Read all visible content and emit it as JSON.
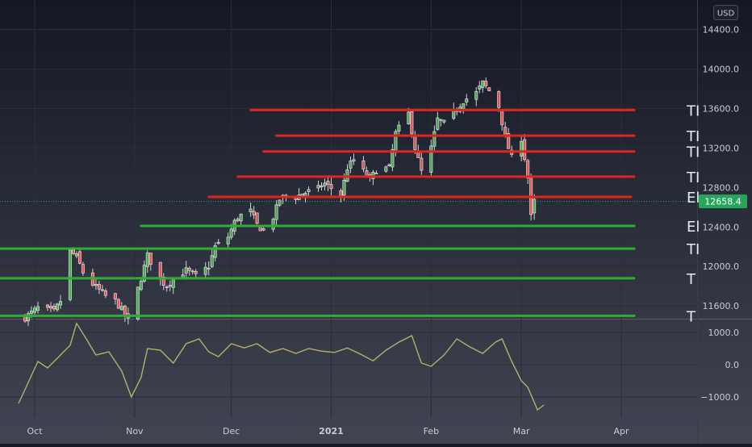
{
  "currency_label": "USD",
  "last_price_label": "12658.4",
  "chart_data": {
    "type": "candlestick",
    "instrument": "",
    "x_labels": [
      {
        "label": "Oct",
        "date": "2020-10-01",
        "bold": false
      },
      {
        "label": "Nov",
        "date": "2020-11-01",
        "bold": false
      },
      {
        "label": "Dec",
        "date": "2020-12-01",
        "bold": false
      },
      {
        "label": "2021",
        "date": "2021-01-01",
        "bold": true
      },
      {
        "label": "Feb",
        "date": "2021-02-01",
        "bold": false
      },
      {
        "label": "Mar",
        "date": "2021-03-01",
        "bold": false
      },
      {
        "label": "Apr",
        "date": "2021-04-01",
        "bold": false
      }
    ],
    "price_axis": {
      "ticks": [
        11600,
        12000,
        12400,
        12800,
        13200,
        13600,
        14000,
        14400
      ],
      "tick_labels": [
        "11600.0",
        "12000.0",
        "12400.0",
        "12800.0",
        "13200.0",
        "13600.0",
        "14000.0",
        "14400.0"
      ],
      "range": [
        11470,
        14700
      ]
    },
    "last_price": 12658.4,
    "colors": {
      "up": "#4caf50",
      "down": "#ef5350",
      "resistance": "#e0251e",
      "support": "#2fae34",
      "oscillator": "#b5b06a",
      "text": "#c9ccd6",
      "grid": "#2a2e39",
      "last_price_tag": "#26a65b"
    },
    "resistance_lines": [
      {
        "price": 13585,
        "start_date": "2020-12-07",
        "end_date": "2021-04-05",
        "label": "TI"
      },
      {
        "price": 13325,
        "start_date": "2020-12-15",
        "end_date": "2021-04-05",
        "label": "TI"
      },
      {
        "price": 13165,
        "start_date": "2020-12-11",
        "end_date": "2021-04-05",
        "label": "TI"
      },
      {
        "price": 12910,
        "start_date": "2020-12-03",
        "end_date": "2021-04-05",
        "label": "TI"
      },
      {
        "price": 12705,
        "start_date": "2020-11-24",
        "end_date": "2021-04-04",
        "label": "El"
      }
    ],
    "support_lines": [
      {
        "price": 12410,
        "start_date": "2020-11-03",
        "end_date": "2021-04-05",
        "label": "El"
      },
      {
        "price": 12180,
        "start_date": "2020-09-01",
        "end_date": "2021-04-05",
        "label": "TI"
      },
      {
        "price": 11880,
        "start_date": "2020-09-01",
        "end_date": "2021-04-05",
        "label": "T"
      },
      {
        "price": 11500,
        "start_date": "2020-09-01",
        "end_date": "2021-04-05",
        "label": "T"
      }
    ],
    "price_series": [
      {
        "date": "2020-09-28",
        "close": 11480
      },
      {
        "date": "2020-10-02",
        "close": 11580
      },
      {
        "date": "2020-10-07",
        "close": 11540
      },
      {
        "date": "2020-10-09",
        "close": 11650
      },
      {
        "date": "2020-10-12",
        "close": 12150
      },
      {
        "date": "2020-10-14",
        "close": 12100
      },
      {
        "date": "2020-10-16",
        "close": 11940
      },
      {
        "date": "2020-10-19",
        "close": 11820
      },
      {
        "date": "2020-10-21",
        "close": 11760
      },
      {
        "date": "2020-10-23",
        "close": 11700
      },
      {
        "date": "2020-10-26",
        "close": 11650
      },
      {
        "date": "2020-10-28",
        "close": 11560
      },
      {
        "date": "2020-10-30",
        "close": 11450
      },
      {
        "date": "2020-11-03",
        "close": 11880
      },
      {
        "date": "2020-11-05",
        "close": 12110
      },
      {
        "date": "2020-11-09",
        "close": 11860
      },
      {
        "date": "2020-11-11",
        "close": 11800
      },
      {
        "date": "2020-11-13",
        "close": 11880
      },
      {
        "date": "2020-11-17",
        "close": 11960
      },
      {
        "date": "2020-11-20",
        "close": 11900
      },
      {
        "date": "2020-11-24",
        "close": 12000
      },
      {
        "date": "2020-11-26",
        "close": 12200
      },
      {
        "date": "2020-11-30",
        "close": 12300
      },
      {
        "date": "2020-12-02",
        "close": 12450
      },
      {
        "date": "2020-12-04",
        "close": 12520
      },
      {
        "date": "2020-12-07",
        "close": 12560
      },
      {
        "date": "2020-12-09",
        "close": 12420
      },
      {
        "date": "2020-12-11",
        "close": 12360
      },
      {
        "date": "2020-12-14",
        "close": 12500
      },
      {
        "date": "2020-12-16",
        "close": 12680
      },
      {
        "date": "2020-12-18",
        "close": 12720
      },
      {
        "date": "2020-12-21",
        "close": 12700
      },
      {
        "date": "2020-12-23",
        "close": 12740
      },
      {
        "date": "2020-12-28",
        "close": 12790
      },
      {
        "date": "2020-12-30",
        "close": 12840
      },
      {
        "date": "2021-01-04",
        "close": 12720
      },
      {
        "date": "2021-01-06",
        "close": 13000
      },
      {
        "date": "2021-01-08",
        "close": 13080
      },
      {
        "date": "2021-01-11",
        "close": 12960
      },
      {
        "date": "2021-01-13",
        "close": 12880
      },
      {
        "date": "2021-01-15",
        "close": 12980
      },
      {
        "date": "2021-01-19",
        "close": 13000
      },
      {
        "date": "2021-01-21",
        "close": 13350
      },
      {
        "date": "2021-01-25",
        "close": 13550
      },
      {
        "date": "2021-01-27",
        "close": 13200
      },
      {
        "date": "2021-01-29",
        "close": 12960
      },
      {
        "date": "2021-02-01",
        "close": 13200
      },
      {
        "date": "2021-02-03",
        "close": 13490
      },
      {
        "date": "2021-02-05",
        "close": 13450
      },
      {
        "date": "2021-02-09",
        "close": 13600
      },
      {
        "date": "2021-02-11",
        "close": 13680
      },
      {
        "date": "2021-02-15",
        "close": 13760
      },
      {
        "date": "2021-02-17",
        "close": 13860
      },
      {
        "date": "2021-02-19",
        "close": 13780
      },
      {
        "date": "2021-02-22",
        "close": 13620
      },
      {
        "date": "2021-02-24",
        "close": 13300
      },
      {
        "date": "2021-02-26",
        "close": 13100
      },
      {
        "date": "2021-03-01",
        "close": 13300
      },
      {
        "date": "2021-03-03",
        "close": 12900
      },
      {
        "date": "2021-03-04",
        "close": 12500
      },
      {
        "date": "2021-03-05",
        "close": 12658
      }
    ],
    "oscillator": {
      "ticks": [
        1000,
        0,
        -1000
      ],
      "tick_labels": [
        "1000.0",
        "0.0",
        "−1000.0"
      ],
      "range": [
        -1650,
        1400
      ],
      "values": [
        {
          "date": "2020-09-26",
          "value": -1200
        },
        {
          "date": "2020-10-02",
          "value": 100
        },
        {
          "date": "2020-10-05",
          "value": -100
        },
        {
          "date": "2020-10-08",
          "value": 200
        },
        {
          "date": "2020-10-12",
          "value": 600
        },
        {
          "date": "2020-10-14",
          "value": 1280
        },
        {
          "date": "2020-10-17",
          "value": 800
        },
        {
          "date": "2020-10-20",
          "value": 300
        },
        {
          "date": "2020-10-24",
          "value": 400
        },
        {
          "date": "2020-10-28",
          "value": -200
        },
        {
          "date": "2020-10-31",
          "value": -1000
        },
        {
          "date": "2020-11-03",
          "value": -400
        },
        {
          "date": "2020-11-05",
          "value": 500
        },
        {
          "date": "2020-11-09",
          "value": 450
        },
        {
          "date": "2020-11-13",
          "value": 50
        },
        {
          "date": "2020-11-17",
          "value": 650
        },
        {
          "date": "2020-11-21",
          "value": 800
        },
        {
          "date": "2020-11-24",
          "value": 400
        },
        {
          "date": "2020-11-27",
          "value": 250
        },
        {
          "date": "2020-12-01",
          "value": 650
        },
        {
          "date": "2020-12-05",
          "value": 520
        },
        {
          "date": "2020-12-09",
          "value": 650
        },
        {
          "date": "2020-12-13",
          "value": 380
        },
        {
          "date": "2020-12-17",
          "value": 500
        },
        {
          "date": "2020-12-21",
          "value": 350
        },
        {
          "date": "2020-12-25",
          "value": 500
        },
        {
          "date": "2020-12-29",
          "value": 420
        },
        {
          "date": "2021-01-02",
          "value": 380
        },
        {
          "date": "2021-01-06",
          "value": 520
        },
        {
          "date": "2021-01-10",
          "value": 330
        },
        {
          "date": "2021-01-14",
          "value": 120
        },
        {
          "date": "2021-01-18",
          "value": 450
        },
        {
          "date": "2021-01-22",
          "value": 700
        },
        {
          "date": "2021-01-26",
          "value": 900
        },
        {
          "date": "2021-01-29",
          "value": 50
        },
        {
          "date": "2021-02-01",
          "value": -50
        },
        {
          "date": "2021-02-05",
          "value": 300
        },
        {
          "date": "2021-02-09",
          "value": 800
        },
        {
          "date": "2021-02-13",
          "value": 550
        },
        {
          "date": "2021-02-17",
          "value": 350
        },
        {
          "date": "2021-02-21",
          "value": 700
        },
        {
          "date": "2021-02-23",
          "value": 800
        },
        {
          "date": "2021-02-26",
          "value": 100
        },
        {
          "date": "2021-03-01",
          "value": -500
        },
        {
          "date": "2021-03-03",
          "value": -700
        },
        {
          "date": "2021-03-06",
          "value": -1400
        },
        {
          "date": "2021-03-08",
          "value": -1250
        }
      ]
    }
  }
}
